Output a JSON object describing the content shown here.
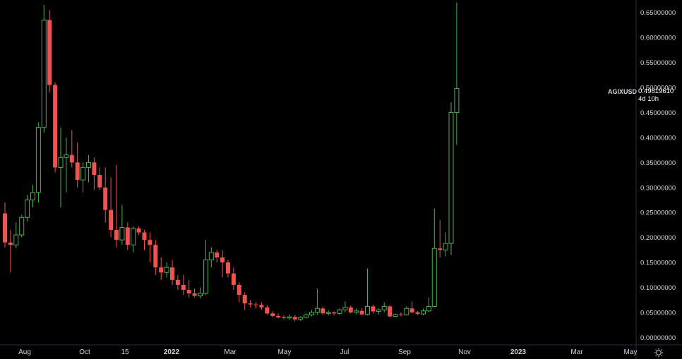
{
  "symbol": "AGIXUSD",
  "last_price": "0.49819610",
  "countdown": "4d 10h",
  "colors": {
    "up": "#26a69a",
    "up_wick": "#4caf50",
    "down": "#ef5350",
    "bg": "#000000",
    "axis": "#2a2e39"
  },
  "settings_icon": "gear-icon",
  "chart_data": {
    "type": "candlestick",
    "title": "",
    "xlabel": "",
    "ylabel": "",
    "ylim": [
      -0.015,
      0.675
    ],
    "y_ticks": [
      "0.65000000",
      "0.60000000",
      "0.55000000",
      "0.50000000",
      "0.45000000",
      "0.40000000",
      "0.35000000",
      "0.30000000",
      "0.25000000",
      "0.20000000",
      "0.15000000",
      "0.10000000",
      "0.05000000",
      "0.00000000"
    ],
    "x_ticks": [
      {
        "label": "Aug",
        "bold": false
      },
      {
        "label": "Oct",
        "bold": false
      },
      {
        "label": "15",
        "bold": false
      },
      {
        "label": "2022",
        "bold": true
      },
      {
        "label": "Mar",
        "bold": false
      },
      {
        "label": "May",
        "bold": false
      },
      {
        "label": "Jul",
        "bold": false
      },
      {
        "label": "Sep",
        "bold": false
      },
      {
        "label": "Nov",
        "bold": false
      },
      {
        "label": "2023",
        "bold": true
      },
      {
        "label": "Mar",
        "bold": false
      },
      {
        "label": "May",
        "bold": false
      }
    ],
    "interval": "1W",
    "candles": [
      [
        0.248,
        0.27,
        0.18,
        0.19
      ],
      [
        0.19,
        0.215,
        0.13,
        0.185
      ],
      [
        0.185,
        0.23,
        0.178,
        0.205
      ],
      [
        0.205,
        0.245,
        0.2,
        0.24
      ],
      [
        0.24,
        0.285,
        0.232,
        0.275
      ],
      [
        0.275,
        0.305,
        0.26,
        0.29
      ],
      [
        0.29,
        0.43,
        0.27,
        0.42
      ],
      [
        0.42,
        0.665,
        0.41,
        0.635
      ],
      [
        0.635,
        0.655,
        0.49,
        0.505
      ],
      [
        0.505,
        0.51,
        0.33,
        0.34
      ],
      [
        0.34,
        0.42,
        0.26,
        0.36
      ],
      [
        0.36,
        0.4,
        0.29,
        0.365
      ],
      [
        0.365,
        0.415,
        0.34,
        0.35
      ],
      [
        0.35,
        0.39,
        0.3,
        0.315
      ],
      [
        0.315,
        0.35,
        0.29,
        0.34
      ],
      [
        0.34,
        0.365,
        0.31,
        0.35
      ],
      [
        0.35,
        0.36,
        0.295,
        0.325
      ],
      [
        0.325,
        0.34,
        0.295,
        0.3
      ],
      [
        0.3,
        0.34,
        0.23,
        0.255
      ],
      [
        0.255,
        0.32,
        0.2,
        0.215
      ],
      [
        0.215,
        0.345,
        0.18,
        0.195
      ],
      [
        0.195,
        0.265,
        0.185,
        0.22
      ],
      [
        0.22,
        0.23,
        0.175,
        0.185
      ],
      [
        0.185,
        0.222,
        0.17,
        0.218
      ],
      [
        0.218,
        0.222,
        0.205,
        0.21
      ],
      [
        0.21,
        0.215,
        0.175,
        0.195
      ],
      [
        0.195,
        0.21,
        0.15,
        0.185
      ],
      [
        0.185,
        0.195,
        0.125,
        0.14
      ],
      [
        0.14,
        0.16,
        0.115,
        0.13
      ],
      [
        0.13,
        0.15,
        0.12,
        0.14
      ],
      [
        0.14,
        0.155,
        0.105,
        0.115
      ],
      [
        0.115,
        0.125,
        0.095,
        0.105
      ],
      [
        0.105,
        0.125,
        0.085,
        0.095
      ],
      [
        0.095,
        0.115,
        0.08,
        0.088
      ],
      [
        0.088,
        0.098,
        0.08,
        0.083
      ],
      [
        0.083,
        0.1,
        0.078,
        0.088
      ],
      [
        0.088,
        0.195,
        0.085,
        0.155
      ],
      [
        0.155,
        0.18,
        0.14,
        0.17
      ],
      [
        0.17,
        0.175,
        0.15,
        0.16
      ],
      [
        0.16,
        0.175,
        0.12,
        0.15
      ],
      [
        0.15,
        0.155,
        0.12,
        0.128
      ],
      [
        0.128,
        0.14,
        0.095,
        0.105
      ],
      [
        0.105,
        0.11,
        0.07,
        0.085
      ],
      [
        0.085,
        0.09,
        0.055,
        0.068
      ],
      [
        0.068,
        0.075,
        0.06,
        0.066
      ],
      [
        0.066,
        0.07,
        0.058,
        0.065
      ],
      [
        0.065,
        0.07,
        0.055,
        0.06
      ],
      [
        0.06,
        0.065,
        0.045,
        0.048
      ],
      [
        0.048,
        0.052,
        0.04,
        0.043
      ],
      [
        0.043,
        0.048,
        0.038,
        0.04
      ],
      [
        0.04,
        0.044,
        0.036,
        0.039
      ],
      [
        0.039,
        0.046,
        0.035,
        0.041
      ],
      [
        0.041,
        0.045,
        0.032,
        0.036
      ],
      [
        0.036,
        0.042,
        0.033,
        0.04
      ],
      [
        0.04,
        0.048,
        0.038,
        0.045
      ],
      [
        0.045,
        0.055,
        0.042,
        0.05
      ],
      [
        0.05,
        0.098,
        0.045,
        0.058
      ],
      [
        0.058,
        0.062,
        0.045,
        0.048
      ],
      [
        0.048,
        0.054,
        0.044,
        0.05
      ],
      [
        0.05,
        0.052,
        0.044,
        0.048
      ],
      [
        0.048,
        0.058,
        0.045,
        0.055
      ],
      [
        0.055,
        0.072,
        0.05,
        0.06
      ],
      [
        0.06,
        0.064,
        0.048,
        0.05
      ],
      [
        0.05,
        0.058,
        0.046,
        0.053
      ],
      [
        0.053,
        0.058,
        0.045,
        0.046
      ],
      [
        0.046,
        0.138,
        0.044,
        0.062
      ],
      [
        0.062,
        0.066,
        0.048,
        0.052
      ],
      [
        0.052,
        0.058,
        0.046,
        0.055
      ],
      [
        0.055,
        0.07,
        0.05,
        0.062
      ],
      [
        0.062,
        0.065,
        0.04,
        0.042
      ],
      [
        0.042,
        0.048,
        0.04,
        0.046
      ],
      [
        0.046,
        0.05,
        0.042,
        0.045
      ],
      [
        0.045,
        0.062,
        0.044,
        0.058
      ],
      [
        0.058,
        0.072,
        0.048,
        0.05
      ],
      [
        0.05,
        0.053,
        0.045,
        0.047
      ],
      [
        0.047,
        0.058,
        0.044,
        0.053
      ],
      [
        0.053,
        0.08,
        0.05,
        0.062
      ],
      [
        0.062,
        0.258,
        0.06,
        0.178
      ],
      [
        0.178,
        0.235,
        0.16,
        0.175
      ],
      [
        0.175,
        0.21,
        0.162,
        0.188
      ],
      [
        0.188,
        0.47,
        0.165,
        0.45
      ],
      [
        0.45,
        0.67,
        0.385,
        0.498
      ]
    ]
  }
}
